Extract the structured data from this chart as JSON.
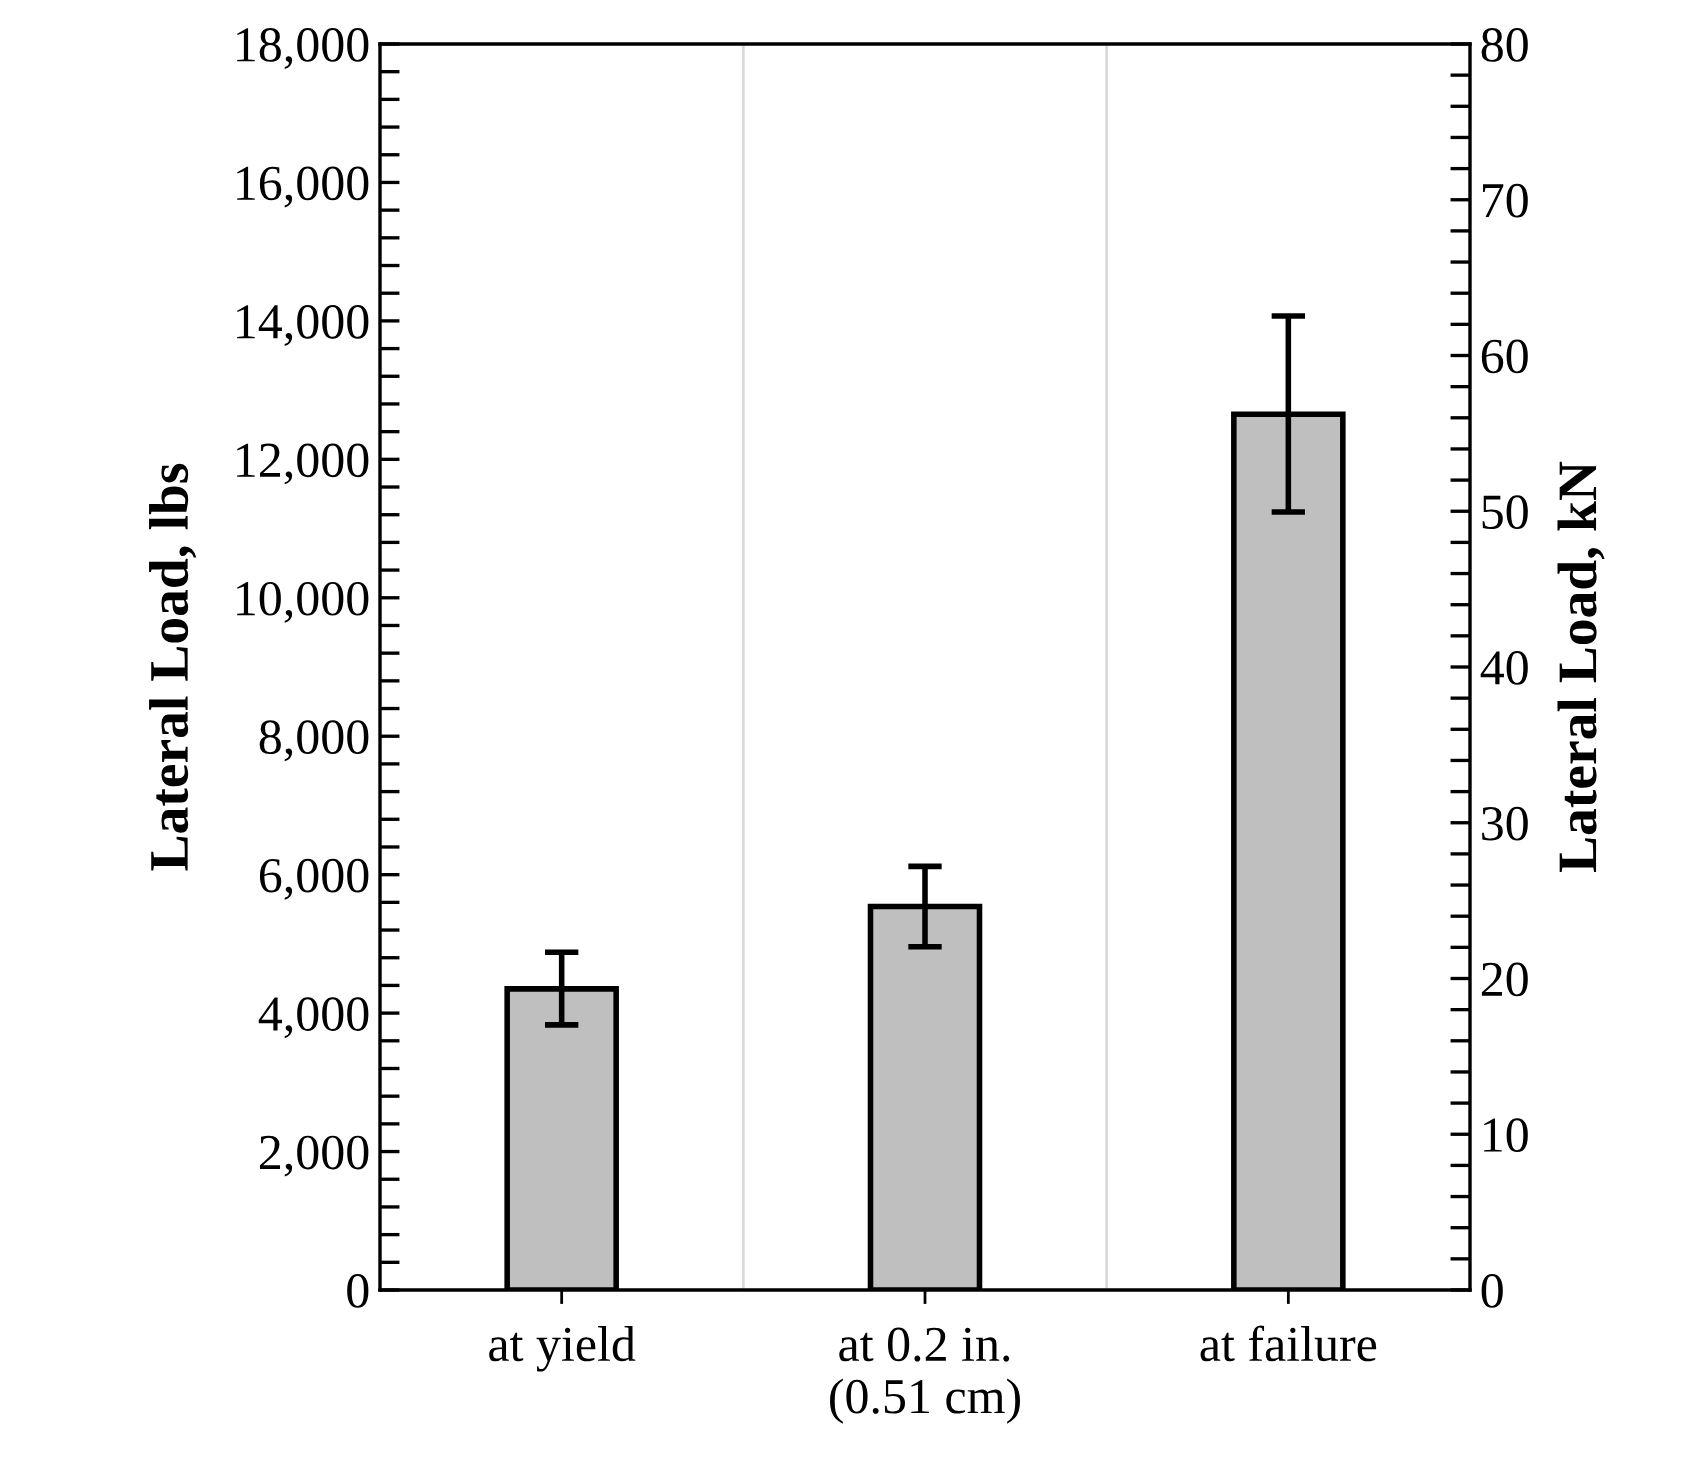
{
  "chart_data": {
    "type": "bar",
    "categories": [
      "at yield",
      "at 0.2 in.\n(0.51 cm)",
      "at failure"
    ],
    "values": [
      4350,
      5540,
      12650
    ],
    "errors": [
      [
        3830,
        4880
      ],
      [
        4960,
        6120
      ],
      [
        11240,
        14070
      ]
    ],
    "color": "#bfbfbf",
    "ylabel": "Lateral Load, lbs",
    "y2label": "Lateral Load, kN",
    "ylim": [
      0,
      18000
    ],
    "yticks": [
      {
        "value": 0,
        "label": "0"
      },
      {
        "value": 400,
        "label": null
      },
      {
        "value": 800,
        "label": null
      },
      {
        "value": 1200,
        "label": null
      },
      {
        "value": 1600,
        "label": null
      },
      {
        "value": 2000,
        "label": "2,000"
      },
      {
        "value": 2400,
        "label": null
      },
      {
        "value": 2800,
        "label": null
      },
      {
        "value": 3200,
        "label": null
      },
      {
        "value": 3600,
        "label": null
      },
      {
        "value": 4000,
        "label": "4,000"
      },
      {
        "value": 4400,
        "label": null
      },
      {
        "value": 4800,
        "label": null
      },
      {
        "value": 5200,
        "label": null
      },
      {
        "value": 5600,
        "label": null
      },
      {
        "value": 6000,
        "label": "6,000"
      },
      {
        "value": 6400,
        "label": null
      },
      {
        "value": 6800,
        "label": null
      },
      {
        "value": 7200,
        "label": null
      },
      {
        "value": 7600,
        "label": null
      },
      {
        "value": 8000,
        "label": "8,000"
      },
      {
        "value": 8400,
        "label": null
      },
      {
        "value": 8800,
        "label": null
      },
      {
        "value": 9200,
        "label": null
      },
      {
        "value": 9600,
        "label": null
      },
      {
        "value": 10000,
        "label": "10,000"
      },
      {
        "value": 10400,
        "label": null
      },
      {
        "value": 10800,
        "label": null
      },
      {
        "value": 11200,
        "label": null
      },
      {
        "value": 11600,
        "label": null
      },
      {
        "value": 12000,
        "label": "12,000"
      },
      {
        "value": 12400,
        "label": null
      },
      {
        "value": 12800,
        "label": null
      },
      {
        "value": 13200,
        "label": null
      },
      {
        "value": 13600,
        "label": null
      },
      {
        "value": 14000,
        "label": "14,000"
      },
      {
        "value": 14400,
        "label": null
      },
      {
        "value": 14800,
        "label": null
      },
      {
        "value": 15200,
        "label": null
      },
      {
        "value": 15600,
        "label": null
      },
      {
        "value": 16000,
        "label": "16,000"
      },
      {
        "value": 16400,
        "label": null
      },
      {
        "value": 16800,
        "label": null
      },
      {
        "value": 17200,
        "label": null
      },
      {
        "value": 17600,
        "label": null
      },
      {
        "value": 18000,
        "label": "18,000"
      }
    ],
    "y2lim": [
      0,
      80
    ],
    "y2ticks": [
      0,
      {
        "value": 2,
        "label": null
      },
      {
        "value": 4,
        "label": null
      },
      {
        "value": 6,
        "label": null
      },
      {
        "value": 8,
        "label": null
      },
      10,
      {
        "value": 12,
        "label": null
      },
      {
        "value": 14,
        "label": null
      },
      {
        "value": 16,
        "label": null
      },
      {
        "value": 18,
        "label": null
      },
      20,
      {
        "value": 22,
        "label": null
      },
      {
        "value": 24,
        "label": null
      },
      {
        "value": 26,
        "label": null
      },
      {
        "value": 28,
        "label": null
      },
      30,
      {
        "value": 32,
        "label": null
      },
      {
        "value": 34,
        "label": null
      },
      {
        "value": 36,
        "label": null
      },
      {
        "value": 38,
        "label": null
      },
      40,
      {
        "value": 42,
        "label": null
      },
      {
        "value": 44,
        "label": null
      },
      {
        "value": 46,
        "label": null
      },
      {
        "value": 48,
        "label": null
      },
      50,
      {
        "value": 52,
        "label": null
      },
      {
        "value": 54,
        "label": null
      },
      {
        "value": 56,
        "label": null
      },
      {
        "value": 58,
        "label": null
      },
      60,
      {
        "value": 62,
        "label": null
      },
      {
        "value": 64,
        "label": null
      },
      {
        "value": 66,
        "label": null
      },
      {
        "value": 68,
        "label": null
      },
      70,
      {
        "value": 72,
        "label": null
      },
      {
        "value": 74,
        "label": null
      },
      {
        "value": 76,
        "label": null
      },
      {
        "value": 78,
        "label": null
      },
      80
    ],
    "grid": "x",
    "legend": false
  }
}
